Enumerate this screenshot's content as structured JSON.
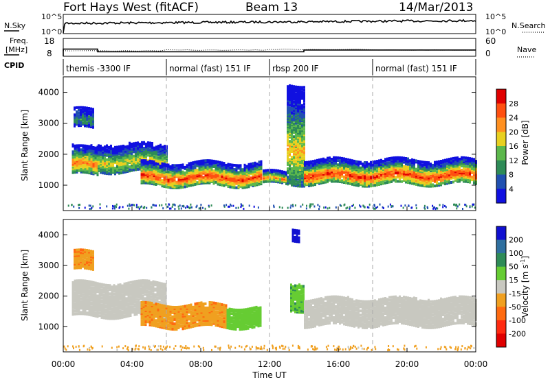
{
  "header": {
    "station": "Fort Hays West (fitACF)",
    "beam": "Beam 13",
    "date": "14/Mar/2013"
  },
  "top_panels": {
    "nsky_label": "N.Sky",
    "nsearch_label": "N.Search",
    "noise_ticks_left": [
      "10^5",
      "10^0"
    ],
    "noise_ticks_right": [
      "10^5",
      "10^0"
    ],
    "freq_label_1": "Freq.",
    "freq_label_2": "[MHz]",
    "freq_ticks": [
      "18",
      "8"
    ],
    "nave_label": "Nave",
    "nave_ticks": [
      "60",
      "0"
    ],
    "cpid_label": "CPID"
  },
  "cpid_segments": [
    {
      "label": "themis -3300 IF",
      "start_hour": 0.0,
      "end_hour": 6.0
    },
    {
      "label": "normal (fast) 151 IF",
      "start_hour": 6.0,
      "end_hour": 12.0
    },
    {
      "label": "rbsp 200 IF",
      "start_hour": 12.0,
      "end_hour": 18.0
    },
    {
      "label": "normal (fast) 151 IF",
      "start_hour": 18.0,
      "end_hour": 24.0
    }
  ],
  "x_axis": {
    "label": "Time UT",
    "ticks": [
      "00:00",
      "04:00",
      "08:00",
      "12:00",
      "16:00",
      "20:00",
      "00:00"
    ]
  },
  "power_panel": {
    "ylabel": "Slant Range [km]",
    "yticks": [
      "1000",
      "2000",
      "3000",
      "4000"
    ],
    "cbar_label": "Power [dB]",
    "cbar_ticks": [
      "4",
      "8",
      "12",
      "16",
      "20",
      "24",
      "28"
    ],
    "cbar_colors": [
      "#1010e0",
      "#2050b0",
      "#2e8b57",
      "#5cb84c",
      "#e8d020",
      "#ff9020",
      "#ff5010",
      "#e00000"
    ]
  },
  "velocity_panel": {
    "ylabel": "Slant Range [km]",
    "yticks": [
      "1000",
      "2000",
      "3000",
      "4000"
    ],
    "cbar_label": "Velocity [m s",
    "cbar_label_sup": "-1",
    "cbar_label_end": "]",
    "cbar_ticks": [
      "200",
      "100",
      "50",
      "15",
      "-15",
      "-50",
      "-100",
      "-200"
    ],
    "cbar_colors": [
      "#1010d0",
      "#2f6f9f",
      "#2e8b57",
      "#66cc33",
      "#c8c8c0",
      "#f0a020",
      "#ff6a10",
      "#ff2a10",
      "#e00000"
    ]
  },
  "chart_data": {
    "type": "heatmap",
    "title": "Fort Hays West (fitACF)",
    "x_range_hours": [
      0,
      24
    ],
    "y_range_km": [
      180,
      4500
    ],
    "frequency_mhz": [
      {
        "start_hour": 0.0,
        "end_hour": 2.0,
        "value": 12.0
      },
      {
        "start_hour": 2.0,
        "end_hour": 14.0,
        "value": 10.5
      },
      {
        "start_hour": 14.0,
        "end_hour": 24.0,
        "value": 11.5
      }
    ],
    "power_bands": [
      {
        "start_hour": 0.5,
        "end_hour": 2.0,
        "r_lo": 1300,
        "r_hi": 2200,
        "peak_db": 24
      },
      {
        "start_hour": 0.6,
        "end_hour": 1.7,
        "r_lo": 2800,
        "r_hi": 3400,
        "peak_db": 10
      },
      {
        "start_hour": 2.0,
        "end_hour": 6.0,
        "r_lo": 1400,
        "r_hi": 2300,
        "peak_db": 18
      },
      {
        "start_hour": 4.5,
        "end_hour": 11.5,
        "r_lo": 950,
        "r_hi": 1700,
        "peak_db": 28
      },
      {
        "start_hour": 11.6,
        "end_hour": 13.0,
        "r_lo": 1000,
        "r_hi": 1400,
        "peak_db": 24
      },
      {
        "start_hour": 13.0,
        "end_hour": 14.0,
        "r_lo": 1000,
        "r_hi": 4200,
        "peak_db": 20
      },
      {
        "start_hour": 14.0,
        "end_hour": 24.0,
        "r_lo": 1000,
        "r_hi": 1800,
        "peak_db": 28
      }
    ],
    "velocity_bands": [
      {
        "start_hour": 0.5,
        "end_hour": 6.0,
        "r_lo": 1300,
        "r_hi": 2400,
        "velocity": 0
      },
      {
        "start_hour": 0.6,
        "end_hour": 1.7,
        "r_lo": 2800,
        "r_hi": 3400,
        "velocity": -40
      },
      {
        "start_hour": 4.5,
        "end_hour": 9.5,
        "r_lo": 950,
        "r_hi": 1700,
        "velocity": -40
      },
      {
        "start_hour": 9.5,
        "end_hour": 11.5,
        "r_lo": 950,
        "r_hi": 1600,
        "velocity": 30
      },
      {
        "start_hour": 13.2,
        "end_hour": 14.0,
        "r_lo": 1500,
        "r_hi": 2400,
        "velocity": 40
      },
      {
        "start_hour": 13.3,
        "end_hour": 13.7,
        "r_lo": 3800,
        "r_hi": 4200,
        "velocity": 220
      },
      {
        "start_hour": 14.0,
        "end_hour": 24.0,
        "r_lo": 1000,
        "r_hi": 1900,
        "velocity": 0
      }
    ]
  }
}
